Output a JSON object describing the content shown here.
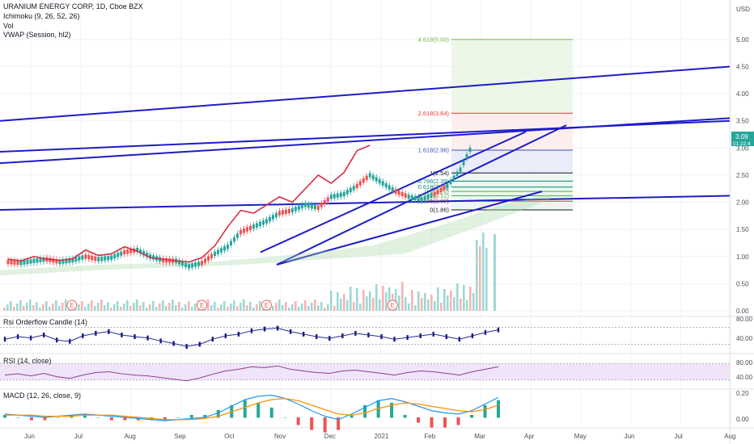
{
  "header": {
    "symbol_line": "URANIUM ENERGY CORP, 1D, Cboe BZX",
    "ind_ichimoku": "Ichimoku (9, 26, 52, 26)",
    "ind_vol": "Vol",
    "ind_vwap": "VWAP (Session, hl2)",
    "currency": "USD"
  },
  "price_badge": {
    "value": "3.09",
    "countdown": "01:22:4",
    "color": "#26a69a"
  },
  "panes": {
    "rsi_orderflow": {
      "title": "Rsi Orderflow Candle (14)",
      "ticks": [
        "80.00",
        "40.00"
      ]
    },
    "rsi": {
      "title": "RSI (14, close)",
      "ticks": [
        "80.00",
        "40.00"
      ]
    },
    "macd": {
      "title": "MACD (12, 26, close, 9)",
      "ticks": [
        "0.20",
        "0.00"
      ]
    }
  },
  "colors": {
    "trendline": "#1c1cc8",
    "price_line": "#d32f45",
    "up": "#26a69a",
    "down": "#ef5350",
    "rsi_fill": "#e9d8f5",
    "rsi_line": "#8e3c91",
    "macd_line": "#2196f3",
    "signal_line": "#ff8f00"
  },
  "earnings_marker": "E",
  "chart_data": [
    {
      "type": "candlestick",
      "pane": "price",
      "x_ticks": [
        "Jun",
        "Jul",
        "Aug",
        "Sep",
        "Oct",
        "Nov",
        "Dec",
        "2021",
        "Feb",
        "Mar",
        "Apr",
        "May",
        "Jun",
        "Jul",
        "Aug"
      ],
      "y_ticks": [
        "5.00",
        "4.50",
        "4.00",
        "3.50",
        "3.00",
        "2.50",
        "2.00",
        "1.50",
        "1.00",
        "0.50",
        "0.00"
      ],
      "ylim": [
        0,
        5.4
      ],
      "series": [
        {
          "name": "Price",
          "path": [
            [
              0,
              0.9
            ],
            [
              1,
              0.88
            ],
            [
              2,
              0.92
            ],
            [
              3,
              0.95
            ],
            [
              4,
              0.9
            ],
            [
              5,
              0.93
            ],
            [
              6,
              1.0
            ],
            [
              7,
              0.95
            ],
            [
              8,
              0.98
            ],
            [
              9,
              1.08
            ],
            [
              10,
              1.12
            ],
            [
              11,
              1.0
            ],
            [
              12,
              0.93
            ],
            [
              13,
              0.92
            ],
            [
              14,
              0.82
            ],
            [
              15,
              0.88
            ],
            [
              16,
              1.05
            ],
            [
              17,
              1.18
            ],
            [
              18,
              1.45
            ],
            [
              19,
              1.55
            ],
            [
              20,
              1.65
            ],
            [
              21,
              1.8
            ],
            [
              22,
              1.85
            ],
            [
              23,
              1.95
            ],
            [
              24,
              1.9
            ],
            [
              25,
              2.1
            ],
            [
              26,
              2.15
            ],
            [
              27,
              2.3
            ],
            [
              28,
              2.5
            ],
            [
              29,
              2.35
            ],
            [
              30,
              2.2
            ],
            [
              31,
              2.1
            ],
            [
              32,
              2.05
            ],
            [
              33,
              2.15
            ],
            [
              34,
              2.3
            ],
            [
              35,
              2.6
            ],
            [
              36,
              3.09
            ]
          ]
        },
        {
          "name": "Overlay",
          "path": [
            [
              0,
              0.95
            ],
            [
              1,
              0.92
            ],
            [
              2,
              1.0
            ],
            [
              3,
              0.95
            ],
            [
              4,
              0.93
            ],
            [
              5,
              0.96
            ],
            [
              6,
              1.12
            ],
            [
              7,
              1.02
            ],
            [
              8,
              1.05
            ],
            [
              9,
              1.18
            ],
            [
              10,
              1.1
            ],
            [
              11,
              0.98
            ],
            [
              12,
              0.95
            ],
            [
              13,
              0.92
            ],
            [
              14,
              0.9
            ],
            [
              15,
              0.98
            ],
            [
              16,
              1.2
            ],
            [
              17,
              1.55
            ],
            [
              18,
              1.85
            ],
            [
              19,
              1.8
            ],
            [
              20,
              1.95
            ],
            [
              21,
              2.1
            ],
            [
              22,
              2.0
            ],
            [
              23,
              2.25
            ],
            [
              24,
              2.5
            ],
            [
              25,
              2.35
            ],
            [
              26,
              2.55
            ],
            [
              27,
              2.95
            ],
            [
              28,
              3.05
            ]
          ]
        }
      ],
      "fib_levels": [
        {
          "label": "4.618(5.00)",
          "value": 5.0,
          "color": "#7cb342"
        },
        {
          "label": "2.618(3.64)",
          "value": 3.64,
          "color": "#e53935"
        },
        {
          "label": "1.618(2.96)",
          "value": 2.96,
          "color": "#3f51b5"
        },
        {
          "label": "1(2.54)",
          "value": 2.54,
          "color": "#131722"
        },
        {
          "label": "0.786(2.39)",
          "value": 2.39,
          "color": "#00897b"
        },
        {
          "label": "0.618(2.28)",
          "value": 2.28,
          "color": "#00897b"
        },
        {
          "label": "0.5(2.20)",
          "value": 2.2,
          "color": "#4caf50"
        },
        {
          "label": "0.382(2.12)",
          "value": 2.12,
          "color": "#4caf50"
        },
        {
          "label": "0.236(2.02)",
          "value": 2.02,
          "color": "#e53935"
        },
        {
          "label": "0(1.86)",
          "value": 1.86,
          "color": "#131722"
        }
      ],
      "volume_ylim": [
        0,
        1
      ],
      "earnings_positions": [
        4,
        15,
        20,
        28
      ]
    },
    {
      "type": "line",
      "pane": "rsi_orderflow",
      "name": "Rsi Orderflow Candle (14)",
      "ylim": [
        20,
        100
      ],
      "values": [
        52,
        58,
        55,
        62,
        50,
        47,
        60,
        66,
        70,
        62,
        58,
        55,
        48,
        42,
        35,
        40,
        52,
        60,
        64,
        72,
        76,
        78,
        70,
        64,
        58,
        54,
        60,
        66,
        62,
        58,
        52,
        56,
        60,
        64,
        58,
        52,
        60,
        68,
        74
      ]
    },
    {
      "type": "line",
      "pane": "rsi",
      "name": "RSI (14, close)",
      "ylim": [
        20,
        100
      ],
      "values": [
        52,
        55,
        50,
        56,
        48,
        44,
        52,
        58,
        60,
        55,
        52,
        50,
        46,
        42,
        38,
        45,
        54,
        62,
        66,
        72,
        70,
        74,
        66,
        62,
        58,
        56,
        62,
        64,
        60,
        56,
        52,
        58,
        62,
        60,
        56,
        52,
        60,
        66,
        72
      ]
    },
    {
      "type": "line",
      "pane": "macd",
      "name": "MACD (12, 26, close, 9)",
      "ylim": [
        -0.08,
        0.24
      ],
      "macd": [
        0.03,
        0.02,
        0.01,
        0.0,
        0.01,
        0.02,
        0.03,
        0.02,
        0.01,
        0.0,
        -0.01,
        -0.02,
        -0.03,
        -0.02,
        -0.01,
        0.0,
        0.04,
        0.1,
        0.16,
        0.19,
        0.2,
        0.17,
        0.12,
        0.06,
        0.01,
        -0.02,
        0.03,
        0.09,
        0.15,
        0.17,
        0.14,
        0.1,
        0.06,
        0.04,
        0.03,
        0.06,
        0.12,
        0.18
      ],
      "signal": [
        0.02,
        0.02,
        0.02,
        0.01,
        0.01,
        0.01,
        0.02,
        0.02,
        0.02,
        0.01,
        0.0,
        -0.01,
        -0.02,
        -0.02,
        -0.02,
        -0.01,
        0.01,
        0.05,
        0.09,
        0.13,
        0.16,
        0.17,
        0.15,
        0.11,
        0.07,
        0.03,
        0.02,
        0.04,
        0.08,
        0.11,
        0.13,
        0.12,
        0.1,
        0.08,
        0.06,
        0.05,
        0.07,
        0.11
      ]
    }
  ]
}
